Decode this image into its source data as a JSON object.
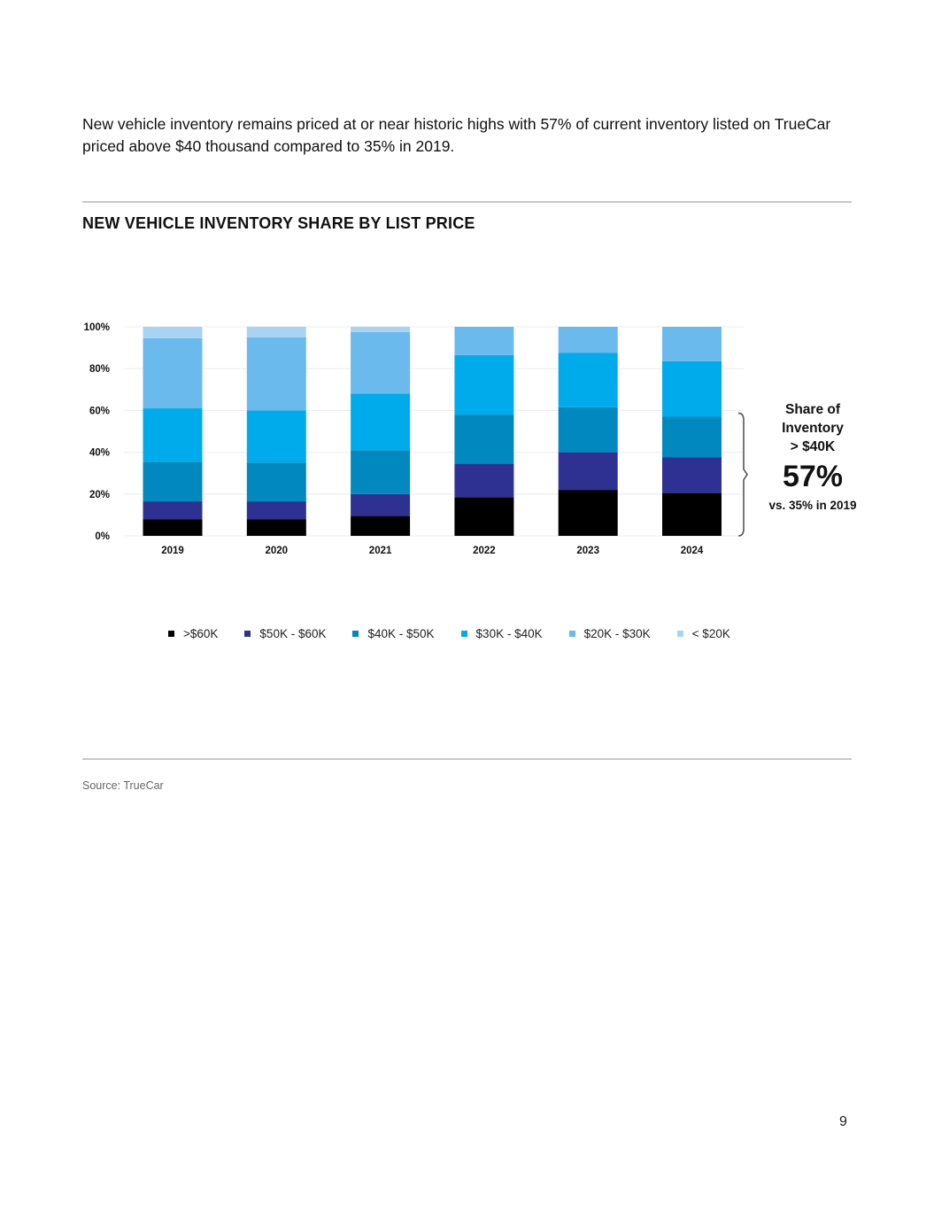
{
  "intro_text": "New vehicle inventory remains priced at or near historic highs with 57% of current inventory listed on TrueCar priced above $40 thousand compared to 35% in 2019.",
  "chart_title": "NEW VEHICLE INVENTORY SHARE BY LIST PRICE",
  "callout": {
    "line1": "Share of",
    "line2": "Inventory",
    "line3": "> $40K",
    "value": "57%",
    "sub": "vs. 35% in 2019"
  },
  "source": "Source: TrueCar",
  "page_number": "9",
  "chart_data": {
    "type": "bar",
    "stacked": true,
    "title": "NEW VEHICLE INVENTORY SHARE BY LIST PRICE",
    "categories": [
      "2019",
      "2020",
      "2021",
      "2022",
      "2023",
      "2024"
    ],
    "ylim": [
      0,
      100
    ],
    "yticks": [
      0,
      20,
      40,
      60,
      80,
      100
    ],
    "ytick_labels": [
      "0%",
      "20%",
      "40%",
      "60%",
      "80%",
      "100%"
    ],
    "grid": true,
    "legend_position": "bottom",
    "series": [
      {
        "name": ">$60K",
        "color": "#000000",
        "values": [
          8,
          8,
          9.5,
          18.5,
          22,
          20.5
        ]
      },
      {
        "name": "$50K - $60K",
        "color": "#2e3192",
        "values": [
          8.5,
          8.5,
          10.5,
          16,
          18,
          17
        ]
      },
      {
        "name": "$40K - $50K",
        "color": "#0088bf",
        "values": [
          19,
          18.5,
          21,
          23.5,
          21.5,
          19.5
        ]
      },
      {
        "name": "$30K - $40K",
        "color": "#00abec",
        "values": [
          25.5,
          25,
          27,
          28.5,
          26,
          26.5
        ]
      },
      {
        "name": "$20K - $30K",
        "color": "#6bbaee",
        "values": [
          33.5,
          35,
          29.5,
          13.5,
          12.5,
          16.5
        ]
      },
      {
        "name": "< $20K",
        "color": "#a8d3f3",
        "values": [
          5.5,
          5,
          2.5,
          0,
          0,
          0
        ]
      }
    ]
  }
}
